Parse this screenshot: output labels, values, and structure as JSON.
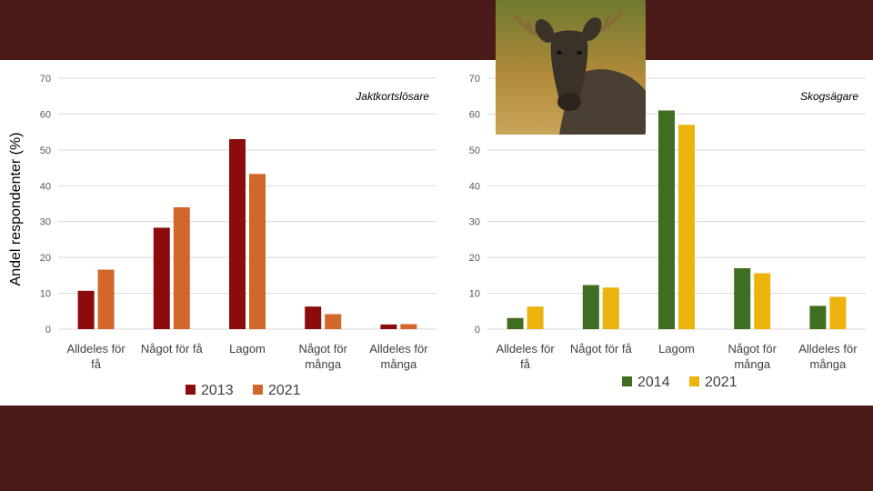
{
  "colors": {
    "background": "#4a1a18",
    "panel": "#ffffff",
    "grid": "#d9d9d9"
  },
  "chart_data": [
    {
      "type": "bar",
      "subtitle": "Jaktkortslösare",
      "ylabel": "Andel respondenter (%)",
      "categories": [
        [
          "Alldeles för",
          "få"
        ],
        [
          "Något för få"
        ],
        [
          "Lagom"
        ],
        [
          "Något för",
          "många"
        ],
        [
          "Alldeles för",
          "många"
        ]
      ],
      "ylim": [
        0,
        70
      ],
      "yticks": [
        0,
        10,
        20,
        30,
        40,
        50,
        60,
        70
      ],
      "grid": true,
      "legend_position": "bottom",
      "series": [
        {
          "name": "2013",
          "color": "#8b0c0c",
          "values": [
            10.7,
            28.3,
            53.0,
            6.3,
            1.3
          ]
        },
        {
          "name": "2021",
          "color": "#d1672a",
          "values": [
            16.6,
            34.0,
            43.3,
            4.2,
            1.4
          ]
        }
      ]
    },
    {
      "type": "bar",
      "subtitle": "Skogsägare",
      "categories": [
        [
          "Alldeles för",
          "få"
        ],
        [
          "Något för få"
        ],
        [
          "Lagom"
        ],
        [
          "Något för",
          "många"
        ],
        [
          "Alldeles för",
          "många"
        ]
      ],
      "ylim": [
        0,
        70
      ],
      "yticks": [
        0,
        10,
        20,
        30,
        40,
        50,
        60,
        70
      ],
      "grid": true,
      "legend_position": "bottom",
      "series": [
        {
          "name": "2014",
          "color": "#3f6e22",
          "values": [
            3.1,
            12.3,
            61.0,
            17.0,
            6.5
          ]
        },
        {
          "name": "2021",
          "color": "#ebb30c",
          "values": [
            6.3,
            11.6,
            57.0,
            15.6,
            9.0
          ]
        }
      ]
    }
  ]
}
